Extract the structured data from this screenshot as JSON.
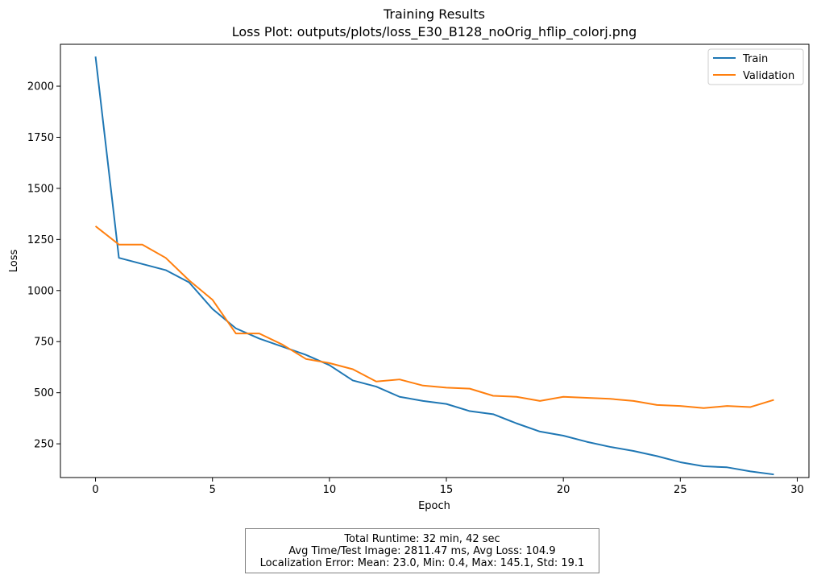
{
  "chart_data": {
    "type": "line",
    "title": "Training Results",
    "subtitle": "Loss Plot: outputs/plots/loss_E30_B128_noOrig_hflip_colorj.png",
    "xlabel": "Epoch",
    "ylabel": "Loss",
    "xlim": [
      -1.5,
      30.5
    ],
    "ylim": [
      85,
      2205
    ],
    "x_ticks": [
      0,
      5,
      10,
      15,
      20,
      25,
      30
    ],
    "y_ticks": [
      250,
      500,
      750,
      1000,
      1250,
      1500,
      1750,
      2000
    ],
    "grid": false,
    "legend_position": "top-right",
    "x": [
      0,
      1,
      2,
      3,
      4,
      5,
      6,
      7,
      8,
      9,
      10,
      11,
      12,
      13,
      14,
      15,
      16,
      17,
      18,
      19,
      20,
      21,
      22,
      23,
      24,
      25,
      26,
      27,
      28,
      29
    ],
    "series": [
      {
        "name": "Train",
        "color": "#1f77b4",
        "values": [
          2145,
          1160,
          1130,
          1100,
          1040,
          910,
          815,
          765,
          725,
          685,
          635,
          560,
          530,
          480,
          460,
          445,
          410,
          395,
          350,
          310,
          290,
          260,
          235,
          215,
          190,
          160,
          140,
          135,
          115,
          100
        ]
      },
      {
        "name": "Validation",
        "color": "#ff7f0e",
        "values": [
          1315,
          1225,
          1225,
          1160,
          1050,
          955,
          790,
          790,
          735,
          665,
          645,
          615,
          555,
          565,
          535,
          525,
          520,
          485,
          480,
          460,
          480,
          475,
          470,
          460,
          440,
          435,
          425,
          435,
          430,
          465
        ]
      }
    ]
  },
  "stats": {
    "runtime": "Total Runtime: 32 min, 42 sec",
    "avg": "Avg Time/Test Image: 2811.47 ms, Avg Loss: 104.9",
    "localization": "Localization Error: Mean: 23.0, Min: 0.4, Max: 145.1, Std: 19.1"
  }
}
